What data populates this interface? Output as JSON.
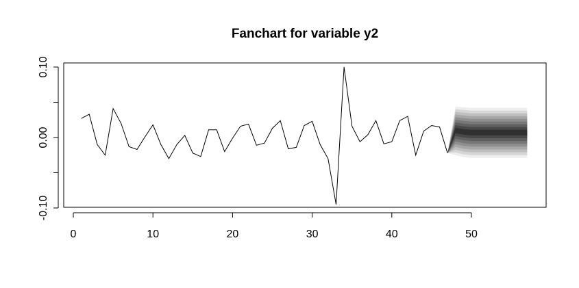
{
  "chart_data": {
    "type": "line",
    "title": "Fanchart for variable y2",
    "xlabel": "",
    "ylabel": "",
    "xlim": [
      0,
      57
    ],
    "ylim": [
      -0.1,
      0.1
    ],
    "x_ticks": [
      0,
      10,
      20,
      30,
      40,
      50
    ],
    "y_ticks": [
      -0.1,
      0.0,
      0.1
    ],
    "x_tick_labels": [
      "0",
      "10",
      "20",
      "30",
      "40",
      "50"
    ],
    "y_tick_labels": [
      "-0.10",
      "0.00",
      "0.10"
    ],
    "grid": false,
    "legend": "none",
    "series": [
      {
        "x": [
          1,
          2,
          3,
          4,
          5,
          6,
          7,
          8,
          9,
          10,
          11,
          12,
          13,
          14,
          15,
          16,
          17,
          18,
          19,
          20,
          21,
          22,
          23,
          24,
          25,
          26,
          27,
          28,
          29,
          30,
          31,
          32,
          33,
          34,
          35,
          36,
          37,
          38,
          39,
          40,
          41,
          42,
          43,
          44,
          45,
          46,
          47
        ],
        "values": [
          0.027,
          0.033,
          -0.01,
          -0.025,
          0.041,
          0.02,
          -0.013,
          -0.017,
          0.001,
          0.018,
          -0.01,
          -0.03,
          -0.01,
          0.003,
          -0.022,
          -0.027,
          0.011,
          0.011,
          -0.02,
          -0.001,
          0.016,
          0.019,
          -0.011,
          -0.008,
          0.013,
          0.024,
          -0.016,
          -0.014,
          0.017,
          0.023,
          -0.01,
          -0.03,
          -0.095,
          0.1,
          0.016,
          -0.006,
          0.004,
          0.024,
          -0.009,
          -0.006,
          0.024,
          0.03,
          -0.025,
          0.009,
          0.017,
          0.015,
          -0.022
        ],
        "color": "#000000"
      }
    ],
    "fan": {
      "x": [
        48,
        49,
        50,
        51,
        52,
        53,
        54,
        55,
        56,
        57
      ],
      "center": [
        0.01,
        0.008,
        0.007,
        0.007,
        0.007,
        0.007,
        0.007,
        0.007,
        0.007,
        0.007
      ],
      "upper_outer": [
        0.044,
        0.043,
        0.042,
        0.042,
        0.042,
        0.042,
        0.042,
        0.042,
        0.042,
        0.042
      ],
      "lower_outer": [
        -0.025,
        -0.028,
        -0.029,
        -0.029,
        -0.029,
        -0.029,
        -0.029,
        -0.029,
        -0.029,
        -0.029
      ],
      "bands": 9,
      "light_color": "#eeeeee",
      "dark_color": "#303030"
    }
  }
}
